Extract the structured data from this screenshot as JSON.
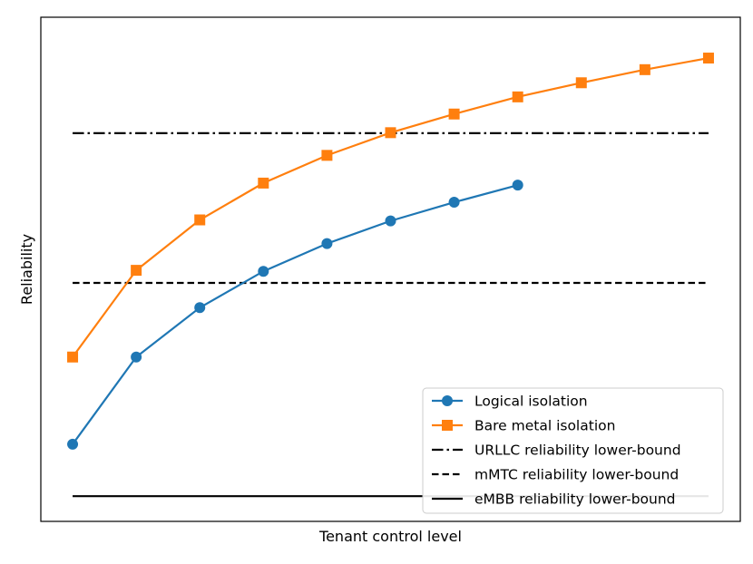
{
  "chart_data": {
    "type": "line",
    "title": "",
    "xlabel": "Tenant control level",
    "ylabel": "Reliability",
    "xlim": [
      -0.05,
      1.05
    ],
    "ylim": [
      0.0,
      1.0
    ],
    "grid": false,
    "legend_position": "bottom-right",
    "series": [
      {
        "name": "Logical isolation",
        "color": "#1f77b4",
        "marker": "circle",
        "x": [
          0.0,
          0.1,
          0.2,
          0.3,
          0.4,
          0.5,
          0.6,
          0.7
        ],
        "values": [
          0.153,
          0.326,
          0.424,
          0.496,
          0.551,
          0.596,
          0.633,
          0.667
        ]
      },
      {
        "name": "Bare metal isolation",
        "color": "#ff7f0e",
        "marker": "square",
        "x": [
          0.0,
          0.1,
          0.2,
          0.3,
          0.4,
          0.5,
          0.6,
          0.7,
          0.8,
          0.9,
          1.0
        ],
        "values": [
          0.326,
          0.498,
          0.598,
          0.671,
          0.726,
          0.771,
          0.808,
          0.842,
          0.87,
          0.896,
          0.919
        ]
      }
    ],
    "reference_lines": [
      {
        "name": "URLLC reliability lower-bound",
        "style": "dashdot",
        "color": "#000000",
        "value": 0.77,
        "x_range": [
          0.0,
          1.0
        ]
      },
      {
        "name": "mMTC reliability lower-bound",
        "style": "dashed",
        "color": "#000000",
        "value": 0.473,
        "x_range": [
          0.0,
          1.0
        ]
      },
      {
        "name": "eMBB reliability lower-bound",
        "style": "solid",
        "color": "#000000",
        "value": 0.05,
        "x_range": [
          0.0,
          1.0
        ]
      }
    ]
  }
}
